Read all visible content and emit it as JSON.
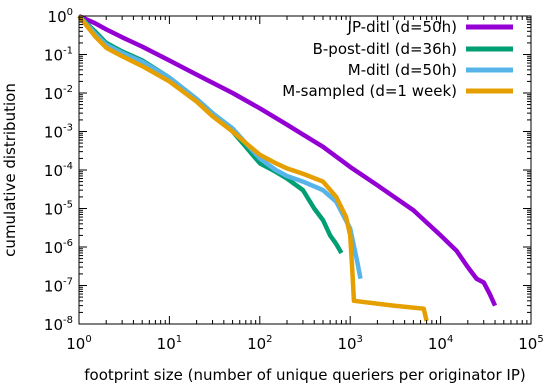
{
  "chart_data": {
    "type": "line",
    "title": "",
    "xlabel": "footprint size (number of unique queriers per originator IP)",
    "ylabel": "cumulative distribution",
    "xscale": "log",
    "yscale": "log",
    "xlim": [
      1,
      100000
    ],
    "ylim": [
      1e-08,
      1
    ],
    "grid": false,
    "legend_position": "top-right",
    "x_ticks": [
      {
        "base": "10",
        "exp": "0",
        "value": 1
      },
      {
        "base": "10",
        "exp": "1",
        "value": 10
      },
      {
        "base": "10",
        "exp": "2",
        "value": 100
      },
      {
        "base": "10",
        "exp": "3",
        "value": 1000
      },
      {
        "base": "10",
        "exp": "4",
        "value": 10000
      },
      {
        "base": "10",
        "exp": "5",
        "value": 100000
      }
    ],
    "y_ticks": [
      {
        "base": "10",
        "exp": "0",
        "value": 1
      },
      {
        "base": "10",
        "exp": "-1",
        "value": 0.1
      },
      {
        "base": "10",
        "exp": "-2",
        "value": 0.01
      },
      {
        "base": "10",
        "exp": "-3",
        "value": 0.001
      },
      {
        "base": "10",
        "exp": "-4",
        "value": 0.0001
      },
      {
        "base": "10",
        "exp": "-5",
        "value": 1e-05
      },
      {
        "base": "10",
        "exp": "-6",
        "value": 1e-06
      },
      {
        "base": "10",
        "exp": "-7",
        "value": 1e-07
      },
      {
        "base": "10",
        "exp": "-8",
        "value": 1e-08
      }
    ],
    "series": [
      {
        "name": "JP-ditl (d=50h)",
        "color": "#9400d3",
        "points": [
          [
            1,
            1
          ],
          [
            1.5,
            0.65
          ],
          [
            2,
            0.45
          ],
          [
            3,
            0.28
          ],
          [
            5,
            0.16
          ],
          [
            10,
            0.07
          ],
          [
            20,
            0.03
          ],
          [
            50,
            0.01
          ],
          [
            100,
            0.004
          ],
          [
            200,
            0.0015
          ],
          [
            500,
            0.0004
          ],
          [
            1000,
            0.00012
          ],
          [
            2000,
            4e-05
          ],
          [
            5000,
            9e-06
          ],
          [
            10000,
            2e-06
          ],
          [
            15000,
            8e-07
          ],
          [
            20000,
            3e-07
          ],
          [
            25000,
            1.5e-07
          ],
          [
            30000,
            1.2e-07
          ],
          [
            35000,
            6e-08
          ],
          [
            40000,
            3e-08
          ]
        ]
      },
      {
        "name": "B-post-ditl (d=36h)",
        "color": "#009e73",
        "points": [
          [
            1,
            1
          ],
          [
            1.5,
            0.4
          ],
          [
            2,
            0.2
          ],
          [
            3,
            0.12
          ],
          [
            5,
            0.07
          ],
          [
            10,
            0.025
          ],
          [
            20,
            0.007
          ],
          [
            30,
            0.003
          ],
          [
            50,
            0.001
          ],
          [
            70,
            0.0004
          ],
          [
            100,
            0.00015
          ],
          [
            150,
            9e-05
          ],
          [
            200,
            6e-05
          ],
          [
            300,
            3e-05
          ],
          [
            400,
            1e-05
          ],
          [
            500,
            5e-06
          ],
          [
            600,
            2e-06
          ],
          [
            700,
            1.2e-06
          ],
          [
            800,
            7e-07
          ]
        ]
      },
      {
        "name": "M-ditl (d=50h)",
        "color": "#56b4e9",
        "points": [
          [
            1,
            1
          ],
          [
            1.5,
            0.35
          ],
          [
            2,
            0.18
          ],
          [
            3,
            0.11
          ],
          [
            5,
            0.065
          ],
          [
            10,
            0.025
          ],
          [
            20,
            0.007
          ],
          [
            30,
            0.003
          ],
          [
            50,
            0.0012
          ],
          [
            70,
            0.0005
          ],
          [
            100,
            0.0002
          ],
          [
            150,
            0.0001
          ],
          [
            200,
            7e-05
          ],
          [
            300,
            5e-05
          ],
          [
            500,
            3e-05
          ],
          [
            700,
            1.5e-05
          ],
          [
            1000,
            3e-06
          ],
          [
            1200,
            4e-07
          ],
          [
            1300,
            1.5e-07
          ]
        ]
      },
      {
        "name": "M-sampled (d=1 week)",
        "color": "#e69f00",
        "points": [
          [
            1,
            1
          ],
          [
            1.5,
            0.3
          ],
          [
            2,
            0.15
          ],
          [
            3,
            0.09
          ],
          [
            5,
            0.05
          ],
          [
            10,
            0.02
          ],
          [
            20,
            0.006
          ],
          [
            30,
            0.0025
          ],
          [
            50,
            0.001
          ],
          [
            70,
            0.0005
          ],
          [
            100,
            0.00025
          ],
          [
            150,
            0.00015
          ],
          [
            200,
            0.00011
          ],
          [
            300,
            8e-05
          ],
          [
            500,
            5e-05
          ],
          [
            700,
            2e-05
          ],
          [
            900,
            6e-06
          ],
          [
            1000,
            2e-06
          ],
          [
            1050,
            3e-07
          ],
          [
            1100,
            4e-08
          ],
          [
            3000,
            3e-08
          ],
          [
            6500,
            2.5e-08
          ],
          [
            7000,
            1.2e-08
          ]
        ]
      }
    ]
  }
}
